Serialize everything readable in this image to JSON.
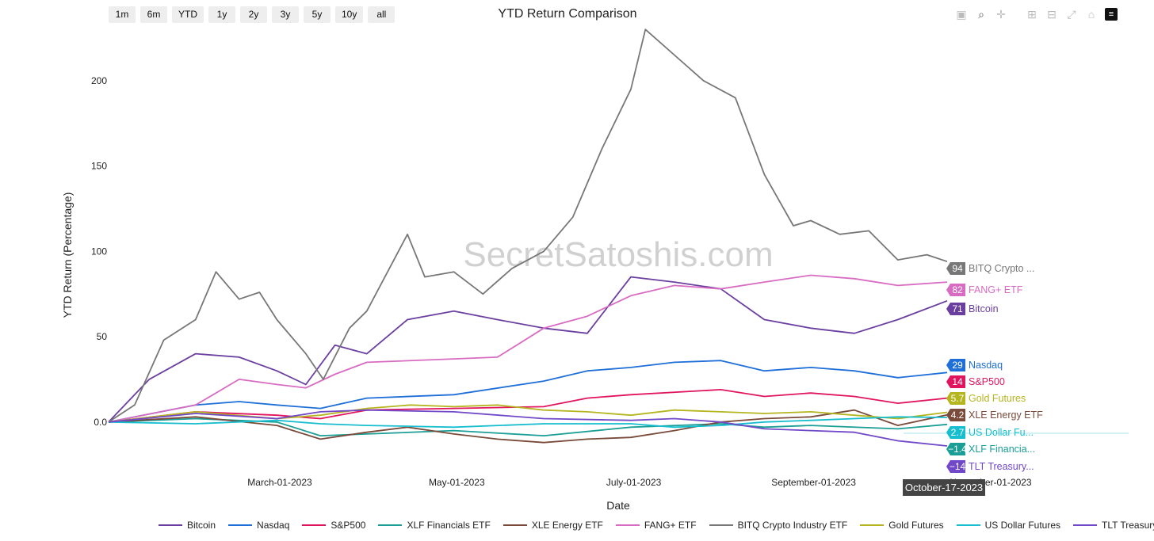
{
  "range_buttons": [
    "1m",
    "6m",
    "YTD",
    "1y",
    "2y",
    "3y",
    "5y",
    "10y",
    "all"
  ],
  "modebar_icons": [
    "camera-icon",
    "zoom-icon",
    "pan-icon",
    "zoom-in-icon",
    "zoom-out-icon",
    "autoscale-icon",
    "reset-axes-icon",
    "plotly-logo-icon"
  ],
  "watermark": "SecretSatoshis.com",
  "hover_label": "October-17-2023",
  "chart_data": {
    "type": "line",
    "title": "YTD Return Comparison",
    "xlabel": "Date",
    "ylabel": "YTD Return (Percentage)",
    "x_range": [
      "2023-01-01",
      "2023-10-17"
    ],
    "x_ticks": [
      {
        "date": "2023-03-01",
        "label": "March-01-2023"
      },
      {
        "date": "2023-05-01",
        "label": "May-01-2023"
      },
      {
        "date": "2023-07-01",
        "label": "July-01-2023"
      },
      {
        "date": "2023-09-01",
        "label": "September-01-2023"
      },
      {
        "date": "2023-11-01",
        "label": "November-01-2023"
      }
    ],
    "ylim": [
      -27,
      231
    ],
    "y_ticks": [
      0,
      50,
      100,
      150,
      200
    ],
    "y_tick_labels": [
      "0.0",
      "50",
      "100",
      "150",
      "200"
    ],
    "grid": false,
    "legend_position": "bottom",
    "series": [
      {
        "name": "Bitcoin",
        "short": "Bitcoin",
        "end_label": "71",
        "color": "#6b3fa0",
        "points": [
          [
            "2023-01-01",
            0
          ],
          [
            "2023-01-15",
            25
          ],
          [
            "2023-01-31",
            40
          ],
          [
            "2023-02-15",
            38
          ],
          [
            "2023-02-28",
            30
          ],
          [
            "2023-03-10",
            22
          ],
          [
            "2023-03-20",
            45
          ],
          [
            "2023-03-31",
            40
          ],
          [
            "2023-04-14",
            60
          ],
          [
            "2023-04-30",
            65
          ],
          [
            "2023-05-15",
            60
          ],
          [
            "2023-05-31",
            55
          ],
          [
            "2023-06-15",
            52
          ],
          [
            "2023-06-30",
            85
          ],
          [
            "2023-07-15",
            82
          ],
          [
            "2023-07-31",
            78
          ],
          [
            "2023-08-15",
            60
          ],
          [
            "2023-08-31",
            55
          ],
          [
            "2023-09-15",
            52
          ],
          [
            "2023-09-30",
            60
          ],
          [
            "2023-10-17",
            71
          ]
        ]
      },
      {
        "name": "Nasdaq",
        "short": "Nasdaq",
        "end_label": "29",
        "color": "#1f6fd8",
        "points": [
          [
            "2023-01-01",
            0
          ],
          [
            "2023-01-31",
            10
          ],
          [
            "2023-02-15",
            12
          ],
          [
            "2023-02-28",
            10
          ],
          [
            "2023-03-15",
            8
          ],
          [
            "2023-03-31",
            14
          ],
          [
            "2023-04-30",
            16
          ],
          [
            "2023-05-31",
            24
          ],
          [
            "2023-06-15",
            30
          ],
          [
            "2023-06-30",
            32
          ],
          [
            "2023-07-15",
            35
          ],
          [
            "2023-07-31",
            36
          ],
          [
            "2023-08-15",
            30
          ],
          [
            "2023-08-31",
            32
          ],
          [
            "2023-09-15",
            30
          ],
          [
            "2023-09-30",
            26
          ],
          [
            "2023-10-17",
            29
          ]
        ]
      },
      {
        "name": "S&P500",
        "short": "S&P500",
        "end_label": "14",
        "color": "#e0155e",
        "points": [
          [
            "2023-01-01",
            0
          ],
          [
            "2023-01-31",
            6
          ],
          [
            "2023-02-28",
            4
          ],
          [
            "2023-03-15",
            2
          ],
          [
            "2023-03-31",
            7
          ],
          [
            "2023-04-30",
            8
          ],
          [
            "2023-05-31",
            9
          ],
          [
            "2023-06-15",
            14
          ],
          [
            "2023-06-30",
            16
          ],
          [
            "2023-07-31",
            19
          ],
          [
            "2023-08-15",
            15
          ],
          [
            "2023-08-31",
            17
          ],
          [
            "2023-09-15",
            15
          ],
          [
            "2023-09-30",
            11
          ],
          [
            "2023-10-17",
            14
          ]
        ]
      },
      {
        "name": "XLF Financials ETF",
        "short": "XLF Financia...",
        "end_label": "−1.4",
        "color": "#1a9e95",
        "points": [
          [
            "2023-01-01",
            0
          ],
          [
            "2023-01-31",
            2
          ],
          [
            "2023-02-28",
            0
          ],
          [
            "2023-03-15",
            -8
          ],
          [
            "2023-03-31",
            -7
          ],
          [
            "2023-04-30",
            -5
          ],
          [
            "2023-05-31",
            -8
          ],
          [
            "2023-06-30",
            -3
          ],
          [
            "2023-07-31",
            -1
          ],
          [
            "2023-08-15",
            -3
          ],
          [
            "2023-08-31",
            -2
          ],
          [
            "2023-09-30",
            -4
          ],
          [
            "2023-10-17",
            -1.4
          ]
        ]
      },
      {
        "name": "XLE Energy ETF",
        "short": "XLE Energy ETF",
        "end_label": "4.2",
        "color": "#7a4a3a",
        "points": [
          [
            "2023-01-01",
            0
          ],
          [
            "2023-01-31",
            3
          ],
          [
            "2023-02-28",
            -2
          ],
          [
            "2023-03-15",
            -10
          ],
          [
            "2023-03-31",
            -6
          ],
          [
            "2023-04-14",
            -3
          ],
          [
            "2023-04-30",
            -7
          ],
          [
            "2023-05-15",
            -10
          ],
          [
            "2023-05-31",
            -12
          ],
          [
            "2023-06-15",
            -10
          ],
          [
            "2023-06-30",
            -9
          ],
          [
            "2023-07-15",
            -5
          ],
          [
            "2023-07-31",
            0
          ],
          [
            "2023-08-15",
            2
          ],
          [
            "2023-08-31",
            3
          ],
          [
            "2023-09-15",
            7
          ],
          [
            "2023-09-30",
            -2
          ],
          [
            "2023-10-17",
            4.2
          ]
        ]
      },
      {
        "name": "FANG+ ETF",
        "short": "FANG+ ETF",
        "end_label": "82",
        "color": "#d86cc3",
        "points": [
          [
            "2023-01-01",
            0
          ],
          [
            "2023-01-31",
            10
          ],
          [
            "2023-02-15",
            25
          ],
          [
            "2023-02-28",
            22
          ],
          [
            "2023-03-10",
            20
          ],
          [
            "2023-03-20",
            28
          ],
          [
            "2023-03-31",
            35
          ],
          [
            "2023-04-30",
            37
          ],
          [
            "2023-05-15",
            38
          ],
          [
            "2023-05-31",
            55
          ],
          [
            "2023-06-15",
            62
          ],
          [
            "2023-06-30",
            74
          ],
          [
            "2023-07-15",
            80
          ],
          [
            "2023-07-31",
            78
          ],
          [
            "2023-08-15",
            82
          ],
          [
            "2023-08-31",
            86
          ],
          [
            "2023-09-15",
            84
          ],
          [
            "2023-09-30",
            80
          ],
          [
            "2023-10-17",
            82
          ]
        ]
      },
      {
        "name": "BITQ Crypto Industry ETF",
        "short": "BITQ Crypto ...",
        "end_label": "94",
        "color": "#777777",
        "points": [
          [
            "2023-01-01",
            0
          ],
          [
            "2023-01-10",
            10
          ],
          [
            "2023-01-20",
            48
          ],
          [
            "2023-01-31",
            60
          ],
          [
            "2023-02-07",
            88
          ],
          [
            "2023-02-15",
            72
          ],
          [
            "2023-02-22",
            76
          ],
          [
            "2023-02-28",
            60
          ],
          [
            "2023-03-10",
            40
          ],
          [
            "2023-03-16",
            25
          ],
          [
            "2023-03-25",
            55
          ],
          [
            "2023-03-31",
            65
          ],
          [
            "2023-04-14",
            110
          ],
          [
            "2023-04-20",
            85
          ],
          [
            "2023-04-30",
            88
          ],
          [
            "2023-05-10",
            75
          ],
          [
            "2023-05-20",
            90
          ],
          [
            "2023-05-31",
            100
          ],
          [
            "2023-06-10",
            120
          ],
          [
            "2023-06-20",
            160
          ],
          [
            "2023-06-30",
            195
          ],
          [
            "2023-07-05",
            230
          ],
          [
            "2023-07-15",
            215
          ],
          [
            "2023-07-25",
            200
          ],
          [
            "2023-08-05",
            190
          ],
          [
            "2023-08-15",
            145
          ],
          [
            "2023-08-25",
            115
          ],
          [
            "2023-08-31",
            118
          ],
          [
            "2023-09-10",
            110
          ],
          [
            "2023-09-20",
            112
          ],
          [
            "2023-09-30",
            95
          ],
          [
            "2023-10-10",
            98
          ],
          [
            "2023-10-17",
            94
          ]
        ]
      },
      {
        "name": "Gold Futures",
        "short": "Gold Futures",
        "end_label": "5.7",
        "color": "#b5b520",
        "points": [
          [
            "2023-01-01",
            0
          ],
          [
            "2023-01-31",
            6
          ],
          [
            "2023-02-28",
            2
          ],
          [
            "2023-03-15",
            4
          ],
          [
            "2023-03-31",
            8
          ],
          [
            "2023-04-15",
            10
          ],
          [
            "2023-04-30",
            9
          ],
          [
            "2023-05-15",
            10
          ],
          [
            "2023-05-31",
            7
          ],
          [
            "2023-06-15",
            6
          ],
          [
            "2023-06-30",
            4
          ],
          [
            "2023-07-15",
            7
          ],
          [
            "2023-07-31",
            6
          ],
          [
            "2023-08-15",
            5
          ],
          [
            "2023-08-31",
            6
          ],
          [
            "2023-09-15",
            4
          ],
          [
            "2023-09-30",
            2
          ],
          [
            "2023-10-17",
            5.7
          ]
        ]
      },
      {
        "name": "US Dollar Futures",
        "short": "US Dollar Fu...",
        "end_label": "2.7",
        "color": "#17becf",
        "points": [
          [
            "2023-01-01",
            0
          ],
          [
            "2023-01-31",
            -1
          ],
          [
            "2023-02-28",
            1
          ],
          [
            "2023-03-15",
            -1
          ],
          [
            "2023-03-31",
            -2
          ],
          [
            "2023-04-30",
            -3
          ],
          [
            "2023-05-31",
            -1
          ],
          [
            "2023-06-30",
            -1
          ],
          [
            "2023-07-15",
            -3
          ],
          [
            "2023-07-31",
            -2
          ],
          [
            "2023-08-15",
            0
          ],
          [
            "2023-08-31",
            1
          ],
          [
            "2023-09-15",
            2
          ],
          [
            "2023-09-30",
            3
          ],
          [
            "2023-10-17",
            2.7
          ]
        ]
      },
      {
        "name": "TLT Treasury Bond ETF",
        "short": "TLT Treasury...",
        "end_label": "−14",
        "color": "#7048c8",
        "points": [
          [
            "2023-01-01",
            0
          ],
          [
            "2023-01-31",
            5
          ],
          [
            "2023-02-28",
            2
          ],
          [
            "2023-03-15",
            6
          ],
          [
            "2023-03-31",
            7
          ],
          [
            "2023-04-30",
            6
          ],
          [
            "2023-05-31",
            2
          ],
          [
            "2023-06-30",
            1
          ],
          [
            "2023-07-15",
            2
          ],
          [
            "2023-07-31",
            0
          ],
          [
            "2023-08-15",
            -4
          ],
          [
            "2023-08-31",
            -5
          ],
          [
            "2023-09-15",
            -6
          ],
          [
            "2023-09-30",
            -11
          ],
          [
            "2023-10-17",
            -14
          ]
        ]
      }
    ],
    "end_label_order": [
      "BITQ Crypto Industry ETF",
      "FANG+ ETF",
      "Bitcoin",
      "Nasdaq",
      "S&P500",
      "Gold Futures",
      "XLE Energy ETF",
      "US Dollar Futures",
      "XLF Financials ETF",
      "TLT Treasury Bond ETF"
    ]
  }
}
